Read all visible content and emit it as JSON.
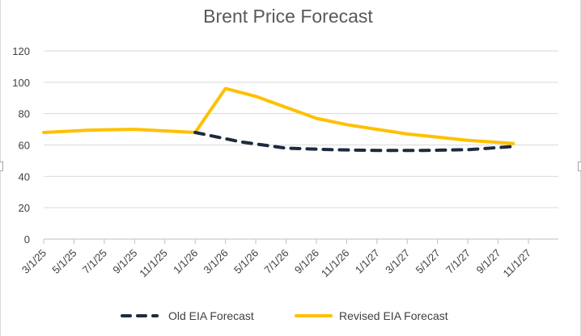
{
  "chart_data": {
    "type": "line",
    "title": "Brent Price Forecast",
    "xlabel": "",
    "ylabel": "",
    "ylim": [
      0,
      120
    ],
    "yticks": [
      0,
      20,
      40,
      60,
      80,
      100,
      120
    ],
    "grid": true,
    "legend_position": "bottom",
    "x_tick_labels": [
      "3/1/25",
      "5/1/25",
      "7/1/25",
      "9/1/25",
      "11/1/25",
      "1/1/26",
      "3/1/26",
      "5/1/26",
      "7/1/26",
      "9/1/26",
      "11/1/26",
      "1/1/27",
      "3/1/27",
      "5/1/27",
      "7/1/27",
      "9/1/27",
      "11/1/27"
    ],
    "x_range_months": [
      0,
      32
    ],
    "series": [
      {
        "name": "Old EIA Forecast",
        "color": "#1c2b3e",
        "style": "dashed",
        "x_months": [
          10,
          13,
          16,
          19,
          22,
          25,
          28,
          31
        ],
        "values": [
          68,
          62,
          58,
          57,
          56.5,
          56.5,
          57,
          59
        ]
      },
      {
        "name": "Revised EIA Forecast",
        "color": "#ffc000",
        "style": "solid",
        "x_months": [
          0,
          3,
          6,
          10,
          12,
          14,
          16,
          18,
          20,
          22,
          24,
          26,
          28,
          31
        ],
        "values": [
          68,
          69.5,
          70,
          68,
          96,
          91,
          84,
          77,
          73,
          70,
          67,
          65,
          63,
          61
        ]
      }
    ]
  }
}
